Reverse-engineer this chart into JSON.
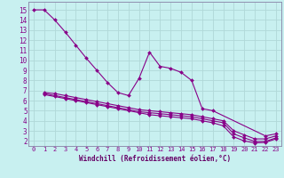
{
  "xlabel": "Windchill (Refroidissement éolien,°C)",
  "bg_color": "#c8f0f0",
  "grid_color": "#b0d8d8",
  "line_color": "#880088",
  "xlim": [
    -0.5,
    23.5
  ],
  "ylim": [
    1.5,
    15.8
  ],
  "yticks": [
    2,
    3,
    4,
    5,
    6,
    7,
    8,
    9,
    10,
    11,
    12,
    13,
    14,
    15
  ],
  "xticks": [
    0,
    1,
    2,
    3,
    4,
    5,
    6,
    7,
    8,
    9,
    10,
    11,
    12,
    13,
    14,
    15,
    16,
    17,
    18,
    19,
    20,
    21,
    22,
    23
  ],
  "series": [
    {
      "x": [
        0,
        1,
        2,
        3,
        4,
        5,
        6,
        7,
        8,
        9,
        10,
        11,
        12,
        13,
        14,
        15,
        16,
        17,
        22,
        23
      ],
      "y": [
        15.0,
        15.0,
        14.0,
        12.8,
        11.5,
        10.2,
        9.0,
        7.8,
        6.8,
        6.5,
        8.2,
        10.8,
        9.4,
        9.2,
        8.8,
        8.0,
        5.2,
        5.0,
        2.5,
        2.7
      ]
    },
    {
      "x": [
        1,
        2,
        3,
        4,
        5,
        6,
        7,
        8,
        9,
        10,
        11,
        12,
        13,
        14,
        15,
        16,
        17,
        18,
        19,
        20,
        21,
        22,
        23
      ],
      "y": [
        6.8,
        6.7,
        6.5,
        6.3,
        6.1,
        5.9,
        5.7,
        5.5,
        5.3,
        5.1,
        5.0,
        4.9,
        4.8,
        4.7,
        4.6,
        4.4,
        4.2,
        4.0,
        3.0,
        2.6,
        2.2,
        2.2,
        2.5
      ]
    },
    {
      "x": [
        1,
        2,
        3,
        4,
        5,
        6,
        7,
        8,
        9,
        10,
        11,
        12,
        13,
        14,
        15,
        16,
        17,
        18,
        19,
        20,
        21,
        22,
        23
      ],
      "y": [
        6.7,
        6.5,
        6.3,
        6.1,
        5.9,
        5.7,
        5.5,
        5.3,
        5.1,
        4.9,
        4.8,
        4.7,
        4.6,
        4.5,
        4.4,
        4.2,
        4.0,
        3.8,
        2.7,
        2.3,
        1.95,
        1.95,
        2.3
      ]
    },
    {
      "x": [
        1,
        2,
        3,
        4,
        5,
        6,
        7,
        8,
        9,
        10,
        11,
        12,
        13,
        14,
        15,
        16,
        17,
        18,
        19,
        20,
        21,
        22,
        23
      ],
      "y": [
        6.6,
        6.4,
        6.2,
        6.0,
        5.8,
        5.6,
        5.4,
        5.2,
        5.0,
        4.8,
        4.6,
        4.5,
        4.4,
        4.3,
        4.2,
        4.0,
        3.8,
        3.5,
        2.4,
        2.0,
        1.8,
        1.85,
        2.2
      ]
    }
  ]
}
